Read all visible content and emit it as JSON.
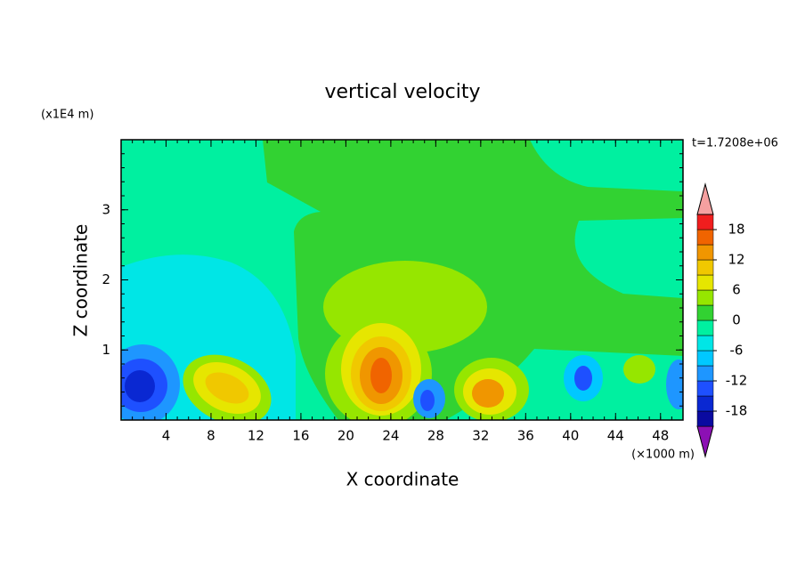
{
  "chart_data": {
    "type": "contour",
    "title": "vertical velocity",
    "y_unit": "(x1E4 m)",
    "x_unit": "(×1000 m)",
    "time_label": "t=1.7208e+06",
    "xlabel": "X coordinate",
    "ylabel": "Z coordinate",
    "xlim": [
      0,
      50
    ],
    "xticks": [
      4,
      8,
      12,
      16,
      20,
      24,
      28,
      32,
      36,
      40,
      44,
      48
    ],
    "ylim": [
      0,
      4
    ],
    "yticks": [
      1,
      2,
      3
    ],
    "colorbar": {
      "levels": [
        -21,
        -18,
        -15,
        -12,
        -9,
        -6,
        -3,
        0,
        3,
        6,
        9,
        12,
        15,
        18,
        21
      ],
      "colors": [
        "#8c10b4",
        "#0a0aa0",
        "#0a28d2",
        "#1e50ff",
        "#1e96ff",
        "#00c8ff",
        "#00e6e6",
        "#00f0a0",
        "#32d232",
        "#96e600",
        "#e6e600",
        "#f0c800",
        "#f09600",
        "#f06400",
        "#f01e1e",
        "#f5a0a0"
      ],
      "ticks": [
        -18,
        -12,
        -6,
        0,
        6,
        12,
        18
      ]
    }
  }
}
